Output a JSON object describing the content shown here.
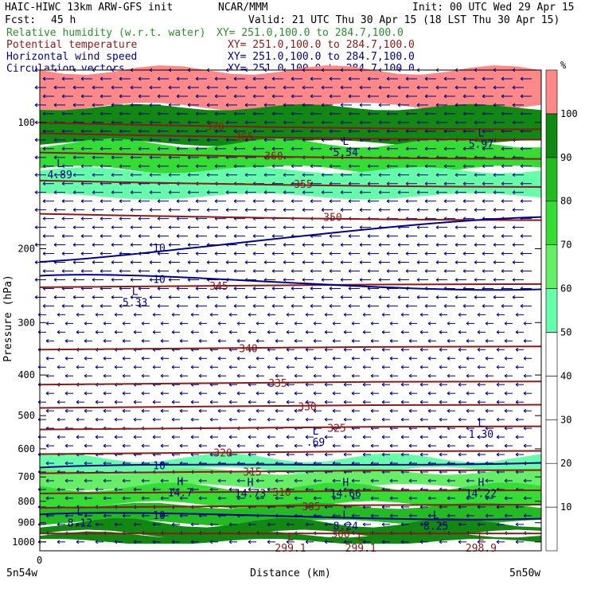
{
  "header": {
    "model": "HAIC-HIWC 13km ARW-GFS init",
    "institution": "NCAR/MMM",
    "init": "Init: 00 UTC Wed 29 Apr 15",
    "fcst_label": "Fcst:",
    "fcst_value": "45 h",
    "valid": "Valid: 21 UTC Thu 30 Apr 15 (18 LST Thu 30 Apr 15)"
  },
  "fields": [
    {
      "name": "Relative humidity (w.r.t. water)",
      "xy": "XY= 251.0,100.0 to 284.7,100.0",
      "color": "#2e8b2e"
    },
    {
      "name": "Potential temperature",
      "xy": "XY= 251.0,100.0 to 284.7,100.0",
      "color": "#8b1a1a"
    },
    {
      "name": "Horizontal wind speed",
      "xy": "XY= 251.0,100.0 to 284.7,100.0",
      "color": "#000080"
    },
    {
      "name": "Circulation vectors",
      "xy": "XY= 251.0,100.0 to 284.7,100.0",
      "color": "#00008b"
    }
  ],
  "chart_data": {
    "type": "heatmap",
    "xlabel": "Distance (km)",
    "ylabel": "Pressure (hPa)",
    "x_origin_label": "0",
    "x_left_label": "5n54w",
    "x_right_label": "5n50w",
    "y_scale": "log",
    "ylim": [
      1050,
      75
    ],
    "yticks": [
      100,
      200,
      300,
      400,
      500,
      600,
      700,
      800,
      900,
      1000
    ],
    "colorbar": {
      "unit": "%",
      "levels": [
        10,
        20,
        30,
        40,
        50,
        60,
        70,
        80,
        90,
        100
      ],
      "colors": [
        "#ffffff",
        "#ffffff",
        "#ffffff",
        "#ffffff",
        "#ffffff",
        "#66ffaa",
        "#66ee66",
        "#33dd33",
        "#22bb22",
        "#118811",
        "#ff8888"
      ]
    },
    "rh_layers": [
      {
        "top": 75,
        "bottom": 92,
        "rh": 105
      },
      {
        "top": 92,
        "bottom": 112,
        "rh": 95
      },
      {
        "top": 112,
        "bottom": 130,
        "rh": 75
      },
      {
        "top": 130,
        "bottom": 150,
        "rh": 55
      },
      {
        "top": 630,
        "bottom": 680,
        "rh": 55
      },
      {
        "top": 680,
        "bottom": 740,
        "rh": 65
      },
      {
        "top": 740,
        "bottom": 820,
        "rh": 75
      },
      {
        "top": 820,
        "bottom": 900,
        "rh": 85
      },
      {
        "top": 900,
        "bottom": 960,
        "rh": 90
      },
      {
        "top": 960,
        "bottom": 1000,
        "rh": 95
      }
    ],
    "theta_contours": [
      {
        "level": "370",
        "p": 102
      },
      {
        "level": "365",
        "p": 108
      },
      {
        "level": "360",
        "p": 120
      },
      {
        "level": "355",
        "p": 140
      },
      {
        "level": "350",
        "p": 168
      },
      {
        "level": "345",
        "p": 245
      },
      {
        "level": "340",
        "p": 345
      },
      {
        "level": "335",
        "p": 418
      },
      {
        "level": "330",
        "p": 475
      },
      {
        "level": "325",
        "p": 535
      },
      {
        "level": "320",
        "p": 612
      },
      {
        "level": "315",
        "p": 680
      },
      {
        "level": "310",
        "p": 760
      },
      {
        "level": "305",
        "p": 822
      },
      {
        "level": "300",
        "p": 955
      }
    ],
    "wind_contours": [
      {
        "level": "10",
        "p_left": 215,
        "p_right": 168
      },
      {
        "level": "10",
        "p_left": 232,
        "p_right": 250
      },
      {
        "level": "10",
        "p_left": 665,
        "p_right": 648
      },
      {
        "level": "10",
        "p_left": 860,
        "p_right": 880
      }
    ],
    "centers": [
      {
        "type": "L",
        "value": "4.89",
        "x": 0.04,
        "p": 130
      },
      {
        "type": "L",
        "value": "5.54",
        "x": 0.61,
        "p": 115
      },
      {
        "type": "L",
        "value": "5.97",
        "x": 0.88,
        "p": 110
      },
      {
        "type": "L",
        "value": "5.33",
        "x": 0.19,
        "p": 262
      },
      {
        "type": "L",
        "value": ".69",
        "x": 0.55,
        "p": 565
      },
      {
        "type": "L",
        "value": "1.30",
        "x": 0.88,
        "p": 540
      },
      {
        "type": "H",
        "value": "14.7",
        "x": 0.28,
        "p": 745
      },
      {
        "type": "H",
        "value": "14.73",
        "x": 0.42,
        "p": 748
      },
      {
        "type": "H",
        "value": "14.66",
        "x": 0.61,
        "p": 748
      },
      {
        "type": "H",
        "value": "14.22",
        "x": 0.88,
        "p": 748
      },
      {
        "type": "L",
        "value": "8.12",
        "x": 0.08,
        "p": 880
      },
      {
        "type": "L",
        "value": "8.24",
        "x": 0.61,
        "p": 895
      },
      {
        "type": "L",
        "value": "8.25",
        "x": 0.79,
        "p": 895
      },
      {
        "type": "L",
        "value": "299.1",
        "x": 0.5,
        "p": 1010
      },
      {
        "type": "L",
        "value": "299.1",
        "x": 0.64,
        "p": 1010
      },
      {
        "type": "L",
        "value": "298.9",
        "x": 0.88,
        "p": 1010
      }
    ]
  }
}
